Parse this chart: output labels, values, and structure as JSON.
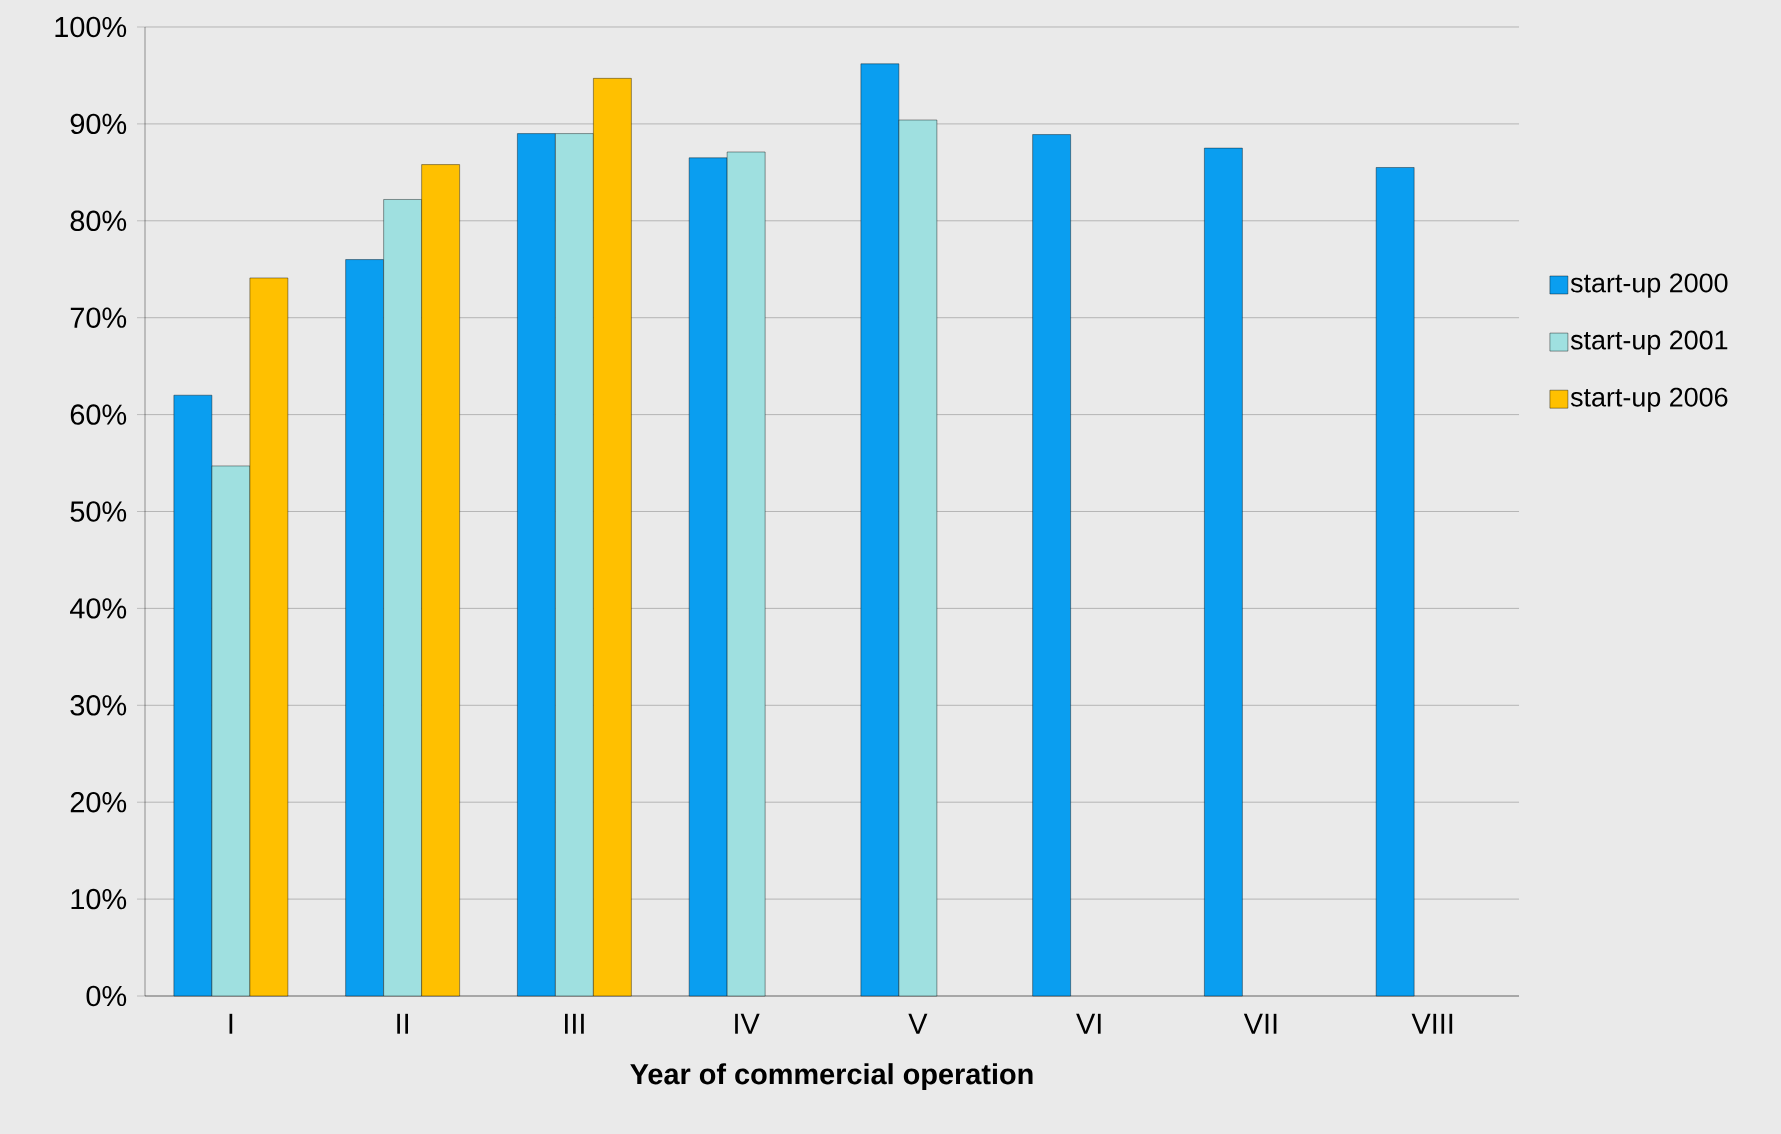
{
  "chart_data": {
    "type": "bar",
    "xlabel": "Year of commercial operation",
    "categories": [
      "I",
      "II",
      "III",
      "IV",
      "V",
      "VI",
      "VII",
      "VIII"
    ],
    "series": [
      {
        "name": "start-up 2000",
        "color": "#0a9ef0",
        "values": [
          62.0,
          76.0,
          89.0,
          86.5,
          96.2,
          88.9,
          87.5,
          85.5
        ]
      },
      {
        "name": "start-up 2001",
        "color": "#9fe0e0",
        "values": [
          54.7,
          82.2,
          89.0,
          87.1,
          90.4,
          null,
          null,
          null
        ]
      },
      {
        "name": "start-up 2006",
        "color": "#ffc000",
        "values": [
          74.1,
          85.8,
          94.7,
          null,
          null,
          null,
          null,
          null
        ]
      }
    ],
    "ylim": [
      0,
      100
    ],
    "yticks": [
      {
        "value": 0,
        "label": "0%"
      },
      {
        "value": 10,
        "label": "10%"
      },
      {
        "value": 20,
        "label": "20%"
      },
      {
        "value": 30,
        "label": "30%"
      },
      {
        "value": 40,
        "label": "40%"
      },
      {
        "value": 50,
        "label": "50%"
      },
      {
        "value": 60,
        "label": "60%"
      },
      {
        "value": 70,
        "label": "70%"
      },
      {
        "value": 80,
        "label": "80%"
      },
      {
        "value": 90,
        "label": "90%"
      },
      {
        "value": 100,
        "label": "100%"
      }
    ],
    "grid": "y",
    "legend": "right"
  }
}
